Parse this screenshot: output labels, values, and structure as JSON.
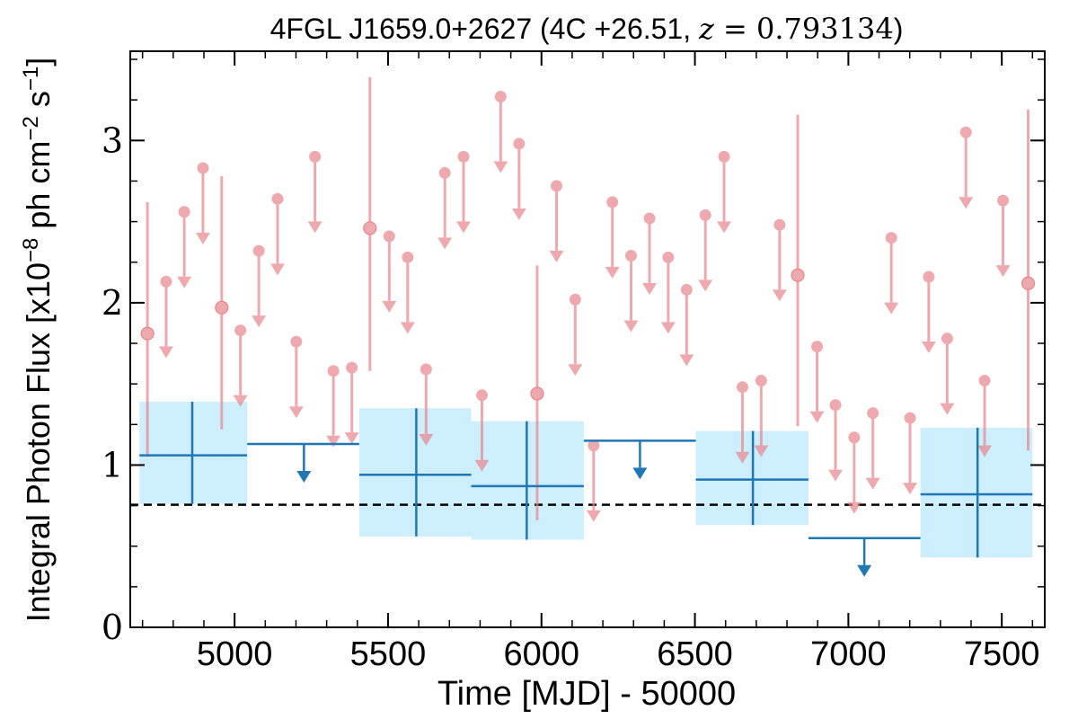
{
  "chart_data": {
    "type": "scatter",
    "title": "4FGL J1659.0+2627 (4C +26.51, z = 0.793134)",
    "title_parts": {
      "prefix": "4FGL J1659.0+2627 (4C +26.51, ",
      "z": "z",
      "eq": " = 0.793134",
      "suffix": ")"
    },
    "xlabel": "Time [MJD] - 50000",
    "ylabel_parts": {
      "pre": "Integral Photon Flux [x10",
      "exp1": "−8",
      "mid": " ph cm",
      "exp2": "−2",
      "mid2": " s",
      "exp3": "−1",
      "post": "]"
    },
    "xlim": [
      4660,
      7640
    ],
    "ylim": [
      0,
      3.55
    ],
    "xticks": [
      {
        "value": 5000,
        "label": "5000"
      },
      {
        "value": 5500,
        "label": "5500"
      },
      {
        "value": 6000,
        "label": "6000"
      },
      {
        "value": 6500,
        "label": "6500"
      },
      {
        "value": 7000,
        "label": "7000"
      },
      {
        "value": 7500,
        "label": "7500"
      }
    ],
    "yticks": [
      {
        "value": 0,
        "label": "0"
      },
      {
        "value": 1,
        "label": "1"
      },
      {
        "value": 2,
        "label": "2"
      },
      {
        "value": 3,
        "label": "3"
      }
    ],
    "x_minor_step": 100,
    "y_minor_step": 0.25,
    "reference_line": {
      "y": 0.755,
      "style": "dashed",
      "color": "#000000"
    },
    "colors": {
      "fine_bins": "#e8868c",
      "coarse_bins": "#1f77b4",
      "coarse_box": "#cdeefc"
    },
    "series": [
      {
        "points": [
          {
            "x": 4716,
            "y": 1.81,
            "ylo": 1.05,
            "yhi": 2.62
          },
          {
            "x": 4958,
            "y": 1.97,
            "ylo": 1.22,
            "yhi": 2.78
          },
          {
            "x": 5441,
            "y": 2.46,
            "ylo": 1.58,
            "yhi": 3.39
          },
          {
            "x": 5986,
            "y": 1.44,
            "ylo": 0.66,
            "yhi": 2.23
          },
          {
            "x": 6835,
            "y": 2.17,
            "ylo": 1.24,
            "yhi": 3.16
          },
          {
            "x": 7586,
            "y": 2.12,
            "ylo": 1.09,
            "yhi": 3.19
          }
        ],
        "upper_limits": [
          {
            "x": 4777,
            "y": 2.13
          },
          {
            "x": 4836,
            "y": 2.56
          },
          {
            "x": 4897,
            "y": 2.83
          },
          {
            "x": 5019,
            "y": 1.83
          },
          {
            "x": 5079,
            "y": 2.32
          },
          {
            "x": 5140,
            "y": 2.64
          },
          {
            "x": 5201,
            "y": 1.76
          },
          {
            "x": 5262,
            "y": 2.9
          },
          {
            "x": 5322,
            "y": 1.58
          },
          {
            "x": 5382,
            "y": 1.6
          },
          {
            "x": 5504,
            "y": 2.41
          },
          {
            "x": 5564,
            "y": 2.28
          },
          {
            "x": 5624,
            "y": 1.59
          },
          {
            "x": 5685,
            "y": 2.8
          },
          {
            "x": 5746,
            "y": 2.9
          },
          {
            "x": 5806,
            "y": 1.43
          },
          {
            "x": 5867,
            "y": 3.27
          },
          {
            "x": 5927,
            "y": 2.98
          },
          {
            "x": 6049,
            "y": 2.72
          },
          {
            "x": 6110,
            "y": 2.02
          },
          {
            "x": 6170,
            "y": 1.12
          },
          {
            "x": 6231,
            "y": 2.62
          },
          {
            "x": 6292,
            "y": 2.29
          },
          {
            "x": 6352,
            "y": 2.52
          },
          {
            "x": 6413,
            "y": 2.28
          },
          {
            "x": 6473,
            "y": 2.08
          },
          {
            "x": 6534,
            "y": 2.54
          },
          {
            "x": 6595,
            "y": 2.9
          },
          {
            "x": 6655,
            "y": 1.48
          },
          {
            "x": 6716,
            "y": 1.52
          },
          {
            "x": 6776,
            "y": 2.48
          },
          {
            "x": 6898,
            "y": 1.73
          },
          {
            "x": 6958,
            "y": 1.37
          },
          {
            "x": 7019,
            "y": 1.17
          },
          {
            "x": 7080,
            "y": 1.32
          },
          {
            "x": 7140,
            "y": 2.4
          },
          {
            "x": 7201,
            "y": 1.29
          },
          {
            "x": 7262,
            "y": 2.16
          },
          {
            "x": 7322,
            "y": 1.78
          },
          {
            "x": 7383,
            "y": 3.05
          },
          {
            "x": 7444,
            "y": 1.52
          },
          {
            "x": 7504,
            "y": 2.63
          }
        ]
      },
      {
        "bins": [
          {
            "x0": 4690,
            "x1": 5041,
            "x": 4862,
            "y": 1.06,
            "ylo": 0.76,
            "yhi": 1.39
          },
          {
            "x0": 5406,
            "x1": 5771,
            "x": 5592,
            "y": 0.94,
            "ylo": 0.56,
            "yhi": 1.35
          },
          {
            "x0": 5771,
            "x1": 6138,
            "x": 5952,
            "y": 0.87,
            "ylo": 0.54,
            "yhi": 1.27
          },
          {
            "x0": 6503,
            "x1": 6870,
            "x": 6689,
            "y": 0.91,
            "ylo": 0.63,
            "yhi": 1.21
          },
          {
            "x0": 7235,
            "x1": 7600,
            "x": 7421,
            "y": 0.82,
            "ylo": 0.43,
            "yhi": 1.23
          }
        ],
        "upper_limits": [
          {
            "x0": 5041,
            "x1": 5406,
            "x": 5226,
            "y": 1.13
          },
          {
            "x0": 6138,
            "x1": 6503,
            "x": 6321,
            "y": 1.15
          },
          {
            "x0": 6870,
            "x1": 7235,
            "x": 7052,
            "y": 0.55
          }
        ]
      }
    ]
  }
}
